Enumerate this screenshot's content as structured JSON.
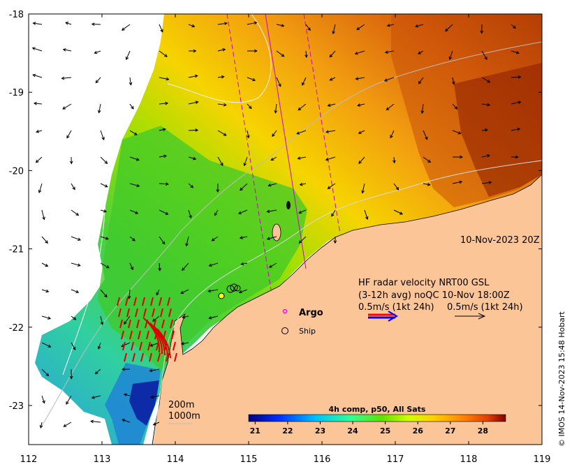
{
  "map": {
    "lon_ticks": [
      "112",
      "113",
      "114",
      "115",
      "116",
      "117",
      "118",
      "119"
    ],
    "lat_ticks": [
      "-18",
      "-19",
      "-20",
      "-21",
      "-22",
      "-23"
    ],
    "date_label": "10-Nov-2023 20Z",
    "legend": {
      "argo_label": "Argo",
      "ship_label": "Ship",
      "radar_title": "HF radar velocity  NRT00 GSL",
      "radar_sub": "(3-12h avg) noQC 10-Nov 18:00Z",
      "scale_left": "0.5m/s (1kt 24h)",
      "scale_right": "0.5m/s (1kt 24h)"
    },
    "depth_labels": [
      "200m",
      "1000m"
    ],
    "colorbar": {
      "title": "4h comp, p50, All Sats",
      "ticks": [
        "21",
        "22",
        "23",
        "24",
        "25",
        "26",
        "27",
        "28"
      ],
      "min": 20.8,
      "max": 28.7,
      "colors": [
        "#00007f",
        "#0040ff",
        "#00bfff",
        "#3fff7f",
        "#7fff00",
        "#ffff00",
        "#ffbf00",
        "#ff7f00",
        "#ff4000",
        "#7f0000"
      ]
    },
    "copyright": "© IMOS 14-Nov-2023 15:48 Hobart"
  }
}
